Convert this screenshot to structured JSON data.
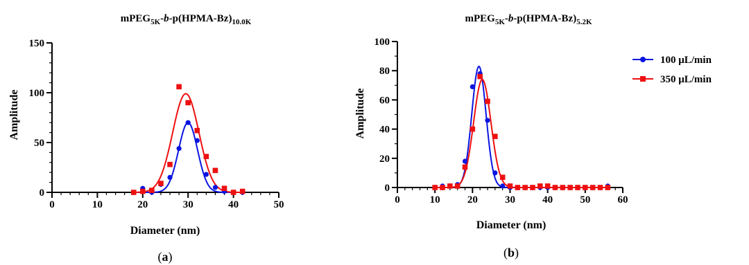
{
  "chart_data": [
    {
      "id": "a",
      "type": "scatter",
      "title_main": "mPEG",
      "title_sub1": "5K",
      "title_mid_italic": "b",
      "title_tail": "-p(HPMA-Bz)",
      "title_sub2": "10.0K",
      "xlabel": "Diameter (nm)",
      "ylabel": "Amplitude",
      "xlim": [
        0,
        50
      ],
      "ylim": [
        0,
        150
      ],
      "xticks": [
        0,
        10,
        20,
        30,
        40,
        50
      ],
      "yticks": [
        0,
        50,
        100,
        150
      ],
      "x_minor_step": 2,
      "y_minor_step": 10,
      "caption_open": "(",
      "caption_letter": "a",
      "caption_close": ")",
      "series": [
        {
          "color": "#0a14e0",
          "marker": "circle",
          "points": [
            [
              18,
              0
            ],
            [
              20,
              4
            ],
            [
              22,
              0
            ],
            [
              24,
              8
            ],
            [
              26,
              15
            ],
            [
              28,
              44
            ],
            [
              30,
              70
            ],
            [
              32,
              52
            ],
            [
              34,
              18
            ],
            [
              36,
              5
            ],
            [
              38,
              1
            ],
            [
              40,
              0
            ],
            [
              42,
              0
            ]
          ],
          "fit": {
            "amp": 70,
            "mu": 30.0,
            "sigma": 2.1
          }
        },
        {
          "color": "#ee1010",
          "marker": "square",
          "points": [
            [
              18,
              0
            ],
            [
              20,
              1
            ],
            [
              22,
              2
            ],
            [
              24,
              9
            ],
            [
              26,
              28
            ],
            [
              28,
              106
            ],
            [
              30,
              90
            ],
            [
              32,
              62
            ],
            [
              34,
              36
            ],
            [
              36,
              22
            ],
            [
              38,
              4
            ],
            [
              40,
              0
            ],
            [
              42,
              1
            ]
          ],
          "fit": {
            "amp": 99,
            "mu": 29.5,
            "sigma": 2.9
          }
        }
      ]
    },
    {
      "id": "b",
      "type": "scatter",
      "title_main": "mPEG",
      "title_sub1": "5K",
      "title_mid_italic": "b",
      "title_tail": "-p(HPMA-Bz)",
      "title_sub2": "5.2K",
      "xlabel": "Diameter (nm)",
      "ylabel": "Amplitude",
      "xlim": [
        0,
        60
      ],
      "ylim": [
        0,
        100
      ],
      "xticks": [
        0,
        10,
        20,
        30,
        40,
        50,
        60
      ],
      "yticks": [
        0,
        20,
        40,
        60,
        80,
        100
      ],
      "x_minor_step": 2,
      "y_minor_step": 10,
      "caption_open": "(",
      "caption_letter": "b",
      "caption_close": ")",
      "legend_position": "right",
      "series": [
        {
          "name": "100 μL/min",
          "color": "#0a14e0",
          "marker": "circle",
          "points": [
            [
              10,
              0
            ],
            [
              12,
              1
            ],
            [
              14,
              1
            ],
            [
              16,
              2
            ],
            [
              18,
              18
            ],
            [
              20,
              69
            ],
            [
              22,
              78
            ],
            [
              24,
              46
            ],
            [
              26,
              10
            ],
            [
              28,
              1
            ],
            [
              30,
              0
            ],
            [
              32,
              0
            ],
            [
              34,
              0
            ],
            [
              36,
              0
            ],
            [
              38,
              0
            ],
            [
              40,
              0
            ],
            [
              42,
              0
            ],
            [
              44,
              0
            ],
            [
              46,
              0
            ],
            [
              48,
              0
            ],
            [
              50,
              0
            ],
            [
              52,
              0
            ],
            [
              54,
              0
            ],
            [
              56,
              1
            ]
          ],
          "fit": {
            "amp": 83,
            "mu": 21.7,
            "sigma": 1.9
          }
        },
        {
          "name": "350 μL/min",
          "color": "#ee1010",
          "marker": "square",
          "points": [
            [
              10,
              0
            ],
            [
              12,
              0
            ],
            [
              14,
              1
            ],
            [
              16,
              1
            ],
            [
              18,
              14
            ],
            [
              20,
              40
            ],
            [
              22,
              76
            ],
            [
              24,
              59
            ],
            [
              26,
              35
            ],
            [
              28,
              7
            ],
            [
              30,
              1
            ],
            [
              32,
              0
            ],
            [
              34,
              0
            ],
            [
              36,
              0
            ],
            [
              38,
              1
            ],
            [
              40,
              1
            ],
            [
              42,
              0
            ],
            [
              44,
              0
            ],
            [
              46,
              0
            ],
            [
              48,
              0
            ],
            [
              50,
              0
            ],
            [
              52,
              0
            ],
            [
              54,
              0
            ],
            [
              56,
              0
            ]
          ],
          "fit": {
            "amp": 74,
            "mu": 22.6,
            "sigma": 2.3
          }
        }
      ]
    }
  ]
}
